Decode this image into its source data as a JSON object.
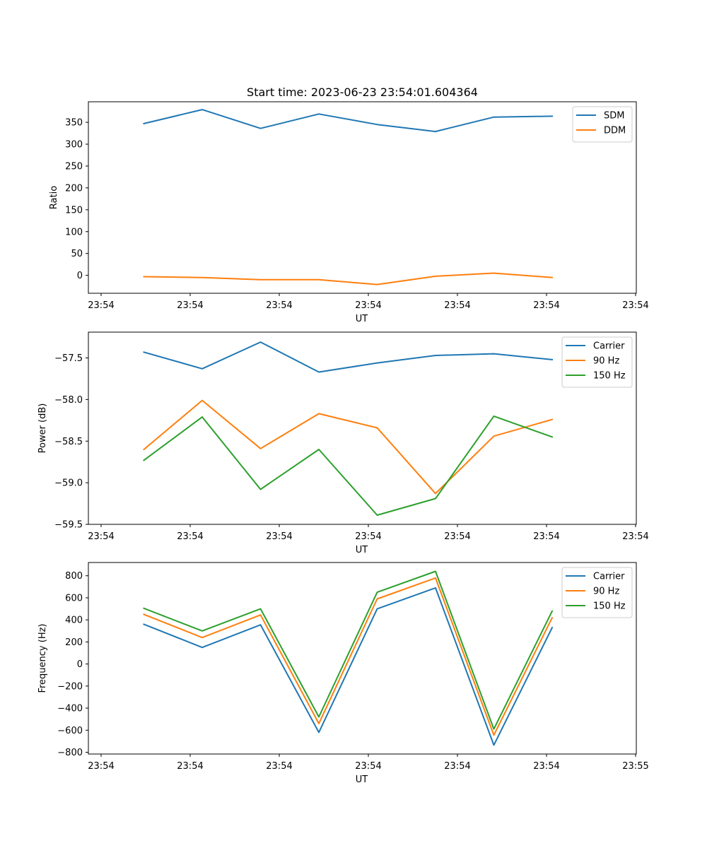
{
  "chart_data": [
    {
      "type": "line",
      "title": "Start time: 2023-06-23 23:54:01.604364",
      "xlabel": "UT",
      "ylabel": "Ratio",
      "x_tick_labels": [
        "23:54",
        "23:54",
        "23:54",
        "23:54",
        "23:54",
        "23:54",
        "23:54"
      ],
      "y_ticks": [
        0,
        50,
        100,
        150,
        200,
        250,
        300,
        350
      ],
      "ylim": [
        -41,
        397
      ],
      "legend_position": "upper-right",
      "grid": false,
      "series": [
        {
          "name": "SDM",
          "color": "#1f77b4",
          "values": [
            347,
            379,
            336,
            369,
            345,
            329,
            362,
            364
          ]
        },
        {
          "name": "DDM",
          "color": "#ff7f0e",
          "values": [
            -3,
            -5,
            -10,
            -10,
            -21,
            -2,
            5,
            -5
          ]
        }
      ]
    },
    {
      "type": "line",
      "title": "",
      "xlabel": "UT",
      "ylabel": "Power (dB)",
      "x_tick_labels": [
        "23:54",
        "23:54",
        "23:54",
        "23:54",
        "23:54",
        "23:54",
        "23:54"
      ],
      "y_ticks": [
        -59.5,
        -59.0,
        -58.5,
        -58.0,
        -57.5
      ],
      "y_tick_labels": [
        "−59.5",
        "−59.0",
        "−58.5",
        "−58.0",
        "−57.5"
      ],
      "ylim": [
        -59.5,
        -57.19
      ],
      "legend_position": "upper-right",
      "grid": false,
      "series": [
        {
          "name": "Carrier",
          "color": "#1f77b4",
          "values": [
            -57.43,
            -57.63,
            -57.31,
            -57.67,
            -57.56,
            -57.47,
            -57.45,
            -57.52
          ]
        },
        {
          "name": "90 Hz",
          "color": "#ff7f0e",
          "values": [
            -58.6,
            -58.01,
            -58.59,
            -58.17,
            -58.34,
            -59.13,
            -58.44,
            -58.24
          ]
        },
        {
          "name": "150 Hz",
          "color": "#2ca02c",
          "values": [
            -58.73,
            -58.21,
            -59.08,
            -58.6,
            -59.39,
            -59.19,
            -58.2,
            -58.45
          ]
        }
      ]
    },
    {
      "type": "line",
      "title": "",
      "xlabel": "UT",
      "ylabel": "Frequency (Hz)",
      "x_tick_labels": [
        "23:54",
        "23:54",
        "23:54",
        "23:54",
        "23:54",
        "23:54",
        "23:55"
      ],
      "y_ticks": [
        -800,
        -600,
        -400,
        -200,
        0,
        200,
        400,
        600,
        800
      ],
      "y_tick_labels": [
        "−800",
        "−600",
        "−400",
        "−200",
        "0",
        "200",
        "400",
        "600",
        "800"
      ],
      "ylim": [
        -816,
        920
      ],
      "legend_position": "upper-right",
      "grid": false,
      "series": [
        {
          "name": "Carrier",
          "color": "#1f77b4",
          "values": [
            360,
            150,
            355,
            -620,
            500,
            690,
            -735,
            330
          ]
        },
        {
          "name": "90 Hz",
          "color": "#ff7f0e",
          "values": [
            450,
            240,
            445,
            -540,
            590,
            780,
            -645,
            420
          ]
        },
        {
          "name": "150 Hz",
          "color": "#2ca02c",
          "values": [
            505,
            300,
            500,
            -480,
            650,
            840,
            -590,
            480
          ]
        }
      ]
    }
  ]
}
